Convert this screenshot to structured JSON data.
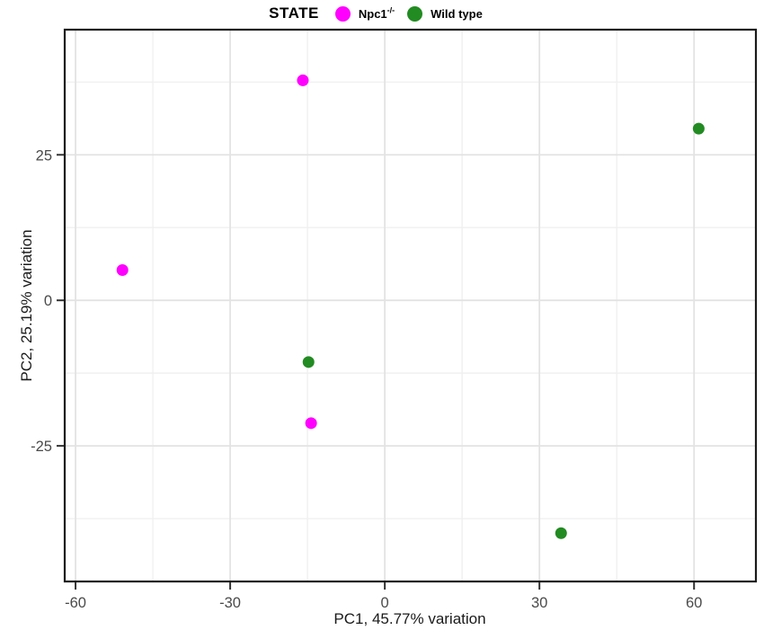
{
  "figure": {
    "legend": {
      "title": "STATE",
      "items": [
        {
          "label": "Npc1",
          "sup": "-/-",
          "color": "#ff00ff"
        },
        {
          "label": "Wild type",
          "sup": "",
          "color": "#228b22"
        }
      ]
    }
  },
  "chart_data": {
    "type": "scatter",
    "title": "",
    "xlabel": "PC1, 45.77% variation",
    "ylabel": "PC2, 25.19% variation",
    "xlim": [
      -62.1,
      72.0
    ],
    "ylim": [
      -48.3,
      46.5
    ],
    "x_ticks_major": [
      -60,
      -30,
      0,
      30,
      60
    ],
    "x_ticks_minor": [
      -45,
      -15,
      15,
      45
    ],
    "y_ticks_major": [
      -25,
      0,
      25
    ],
    "y_ticks_minor": [
      -37.5,
      -12.5,
      12.5,
      37.5
    ],
    "grid": true,
    "legend_position": "top",
    "point_radius": 6.5,
    "series": [
      {
        "name": "Npc1-/-",
        "color": "#ff00ff",
        "points": [
          [
            -15.9,
            37.8
          ],
          [
            -50.9,
            5.2
          ],
          [
            -14.3,
            -21.1
          ]
        ]
      },
      {
        "name": "Wild type",
        "color": "#228b22",
        "points": [
          [
            -14.8,
            -10.6
          ],
          [
            60.9,
            29.5
          ],
          [
            34.2,
            -40.0
          ]
        ]
      }
    ]
  }
}
